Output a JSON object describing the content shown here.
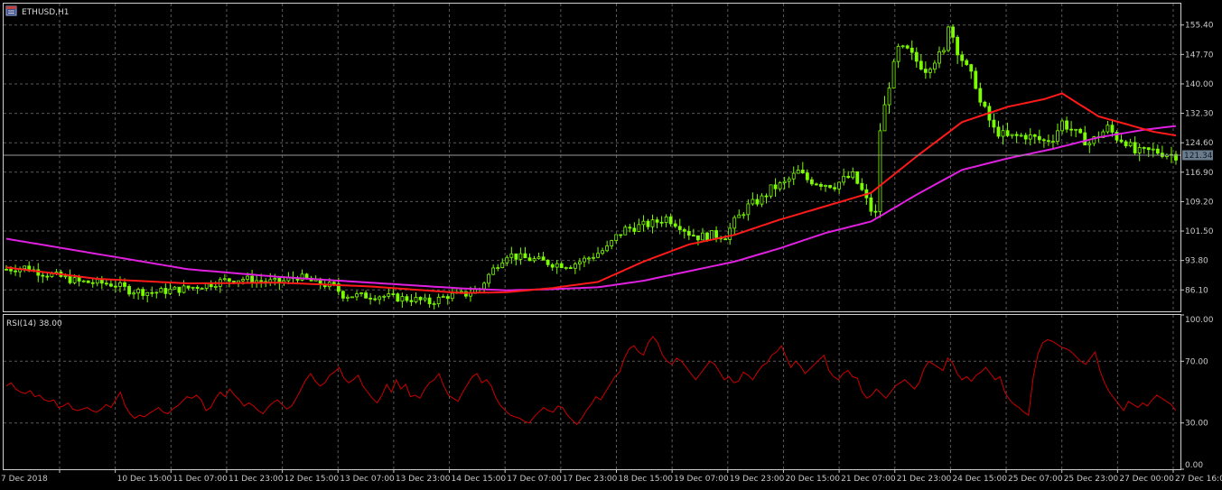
{
  "window": {
    "symbol_label": "ETHUSD,H1",
    "icon": "chart-window-icon"
  },
  "colors": {
    "background": "#000000",
    "grid": "#5a5a5a",
    "candle": "#7CFC00",
    "ma_fast": "#ff1a1a",
    "ma_slow": "#e020e0",
    "rsi": "#cc0000",
    "axis_text": "#c8c8c8",
    "price_tag_bg": "#6b7b8c"
  },
  "chart_data": [
    {
      "type": "candlestick",
      "symbol": "ETHUSD",
      "timeframe": "H1",
      "y_ticks": [
        155.4,
        147.7,
        140.0,
        132.3,
        124.6,
        116.9,
        109.2,
        101.5,
        93.8,
        86.1
      ],
      "ylim": [
        80.5,
        161.0
      ],
      "current_price": 121.34,
      "current_price_label": "121.34",
      "x_tick_labels": [
        "7 Dec 2018",
        "10 Dec 15:00",
        "11 Dec 07:00",
        "11 Dec 23:00",
        "12 Dec 15:00",
        "13 Dec 07:00",
        "13 Dec 23:00",
        "14 Dec 15:00",
        "17 Dec 07:00",
        "17 Dec 23:00",
        "18 Dec 15:00",
        "19 Dec 07:00",
        "19 Dec 23:00",
        "20 Dec 15:00",
        "21 Dec 07:00",
        "21 Dec 23:00",
        "24 Dec 15:00",
        "25 Dec 07:00",
        "25 Dec 23:00",
        "27 Dec 00:00",
        "27 Dec 16:00"
      ],
      "close_path": [
        [
          0,
          91.5
        ],
        [
          4,
          92.0
        ],
        [
          8,
          90.5
        ],
        [
          12,
          89.5
        ],
        [
          16,
          88.2
        ],
        [
          20,
          88.0
        ],
        [
          24,
          87.5
        ],
        [
          27,
          86.0
        ],
        [
          32,
          85.4
        ],
        [
          36,
          86.0
        ],
        [
          40,
          86.6
        ],
        [
          44,
          87.5
        ],
        [
          48,
          88.6
        ],
        [
          52,
          89.0
        ],
        [
          56,
          88.4
        ],
        [
          60,
          88.0
        ],
        [
          64,
          89.6
        ],
        [
          68,
          88.0
        ],
        [
          72,
          87.0
        ],
        [
          74,
          84.8
        ],
        [
          78,
          84.5
        ],
        [
          82,
          84.6
        ],
        [
          86,
          84.0
        ],
        [
          90,
          83.6
        ],
        [
          93,
          82.8
        ],
        [
          97,
          84.6
        ],
        [
          101,
          85.0
        ],
        [
          104,
          86.5
        ],
        [
          106,
          90.0
        ],
        [
          108,
          93.0
        ],
        [
          110,
          95.5
        ],
        [
          113,
          94.5
        ],
        [
          116,
          94.0
        ],
        [
          120,
          93.0
        ],
        [
          124,
          92.6
        ],
        [
          128,
          94.5
        ],
        [
          132,
          97.0
        ],
        [
          134,
          100.0
        ],
        [
          136,
          102.0
        ],
        [
          138,
          102.5
        ],
        [
          142,
          103.5
        ],
        [
          145,
          105.0
        ],
        [
          148,
          103.0
        ],
        [
          150,
          101.0
        ],
        [
          152,
          100.0
        ],
        [
          155,
          100.5
        ],
        [
          158,
          100.2
        ],
        [
          160,
          104.0
        ],
        [
          163,
          108.0
        ],
        [
          166,
          110.0
        ],
        [
          168,
          112.5
        ],
        [
          171,
          114.0
        ],
        [
          174,
          117.0
        ],
        [
          176,
          115.0
        ],
        [
          179,
          114.0
        ],
        [
          182,
          113.5
        ],
        [
          184,
          115.0
        ],
        [
          186,
          116.0
        ],
        [
          188,
          112.0
        ],
        [
          190,
          107.0
        ],
        [
          191,
          106.0
        ],
        [
          192,
          128.0
        ],
        [
          194,
          140.0
        ],
        [
          196,
          149.0
        ],
        [
          198,
          148.5
        ],
        [
          200,
          146.0
        ],
        [
          202,
          144.0
        ],
        [
          204,
          146.5
        ],
        [
          206,
          148.0
        ],
        [
          207,
          156.0
        ],
        [
          209,
          149.0
        ],
        [
          211,
          144.0
        ],
        [
          213,
          140.0
        ],
        [
          214,
          135.0
        ],
        [
          215,
          133.0
        ],
        [
          217,
          128.0
        ],
        [
          220,
          126.0
        ],
        [
          224,
          126.5
        ],
        [
          228,
          125.0
        ],
        [
          230,
          126.0
        ],
        [
          232,
          130.0
        ],
        [
          234,
          128.0
        ],
        [
          236,
          126.0
        ],
        [
          238,
          124.5
        ],
        [
          242,
          128.5
        ],
        [
          244,
          126.0
        ],
        [
          246,
          125.0
        ],
        [
          248,
          122.0
        ],
        [
          252,
          122.5
        ],
        [
          254,
          122.0
        ],
        [
          256,
          121.5
        ],
        [
          257,
          121.3
        ]
      ],
      "ma_fast": {
        "points": [
          [
            0,
            92.0
          ],
          [
            20,
            89.0
          ],
          [
            40,
            87.8
          ],
          [
            60,
            88.0
          ],
          [
            80,
            87.0
          ],
          [
            100,
            85.3
          ],
          [
            110,
            85.5
          ],
          [
            120,
            86.6
          ],
          [
            130,
            88.2
          ],
          [
            140,
            93.5
          ],
          [
            150,
            98.0
          ],
          [
            160,
            100.5
          ],
          [
            170,
            104.5
          ],
          [
            180,
            108.0
          ],
          [
            190,
            111.5
          ],
          [
            200,
            121.0
          ],
          [
            210,
            130.0
          ],
          [
            220,
            134.0
          ],
          [
            228,
            136.0
          ],
          [
            232,
            137.5
          ],
          [
            236,
            134.5
          ],
          [
            240,
            131.5
          ],
          [
            246,
            129.5
          ],
          [
            252,
            127.5
          ],
          [
            257,
            126.5
          ]
        ]
      },
      "ma_slow": {
        "points": [
          [
            0,
            99.5
          ],
          [
            20,
            95.5
          ],
          [
            40,
            91.5
          ],
          [
            60,
            89.5
          ],
          [
            80,
            88.0
          ],
          [
            100,
            86.5
          ],
          [
            110,
            86.0
          ],
          [
            120,
            86.3
          ],
          [
            130,
            86.8
          ],
          [
            140,
            88.5
          ],
          [
            150,
            91.0
          ],
          [
            160,
            93.5
          ],
          [
            170,
            97.0
          ],
          [
            180,
            101.0
          ],
          [
            190,
            104.0
          ],
          [
            200,
            111.0
          ],
          [
            210,
            117.5
          ],
          [
            220,
            120.5
          ],
          [
            230,
            123.0
          ],
          [
            240,
            126.0
          ],
          [
            250,
            128.0
          ],
          [
            257,
            129.0
          ]
        ]
      }
    },
    {
      "type": "line",
      "title": "RSI(14) 38.00",
      "y_ticks": [
        100.0,
        70.0,
        30.0,
        0.0
      ],
      "ylim": [
        0,
        100
      ],
      "values": [
        54,
        56,
        52,
        50,
        49,
        51,
        47,
        48,
        45,
        44,
        45,
        40,
        41,
        43,
        39,
        38,
        39,
        40,
        38,
        37,
        39,
        42,
        40,
        45,
        50,
        41,
        36,
        33,
        35,
        34,
        36,
        38,
        40,
        37,
        36,
        39,
        41,
        44,
        47,
        46,
        48,
        45,
        38,
        40,
        46,
        50,
        47,
        52,
        48,
        45,
        41,
        43,
        41,
        38,
        36,
        40,
        43,
        45,
        42,
        39,
        41,
        46,
        52,
        58,
        62,
        57,
        54,
        56,
        61,
        63,
        66,
        59,
        56,
        58,
        61,
        54,
        50,
        46,
        43,
        48,
        55,
        50,
        58,
        52,
        55,
        47,
        48,
        46,
        52,
        56,
        58,
        62,
        54,
        48,
        46,
        44,
        50,
        55,
        60,
        62,
        56,
        58,
        54,
        46,
        41,
        38,
        35,
        34,
        33,
        31,
        30,
        34,
        37,
        40,
        38,
        37,
        41,
        40,
        35,
        32,
        29,
        33,
        38,
        42,
        47,
        45,
        50,
        55,
        60,
        63,
        72,
        78,
        80,
        76,
        74,
        82,
        86,
        82,
        74,
        70,
        68,
        72,
        70,
        66,
        62,
        58,
        62,
        66,
        70,
        68,
        63,
        58,
        60,
        56,
        57,
        63,
        61,
        58,
        63,
        67,
        69,
        74,
        76,
        80,
        73,
        66,
        70,
        67,
        62,
        65,
        68,
        71,
        74,
        64,
        60,
        58,
        62,
        64,
        60,
        59,
        50,
        46,
        48,
        52,
        49,
        46,
        50,
        54,
        56,
        58,
        55,
        52,
        56,
        65,
        70,
        68,
        66,
        64,
        72,
        69,
        62,
        58,
        60,
        57,
        61,
        63,
        66,
        62,
        58,
        60,
        50,
        45,
        42,
        40,
        37,
        35,
        60,
        75,
        82,
        84,
        83,
        81,
        79,
        78,
        76,
        73,
        70,
        68,
        72,
        76,
        64,
        56,
        50,
        46,
        42,
        38,
        44,
        42,
        40,
        43,
        41,
        45,
        48,
        46,
        44,
        42,
        38
      ]
    }
  ]
}
